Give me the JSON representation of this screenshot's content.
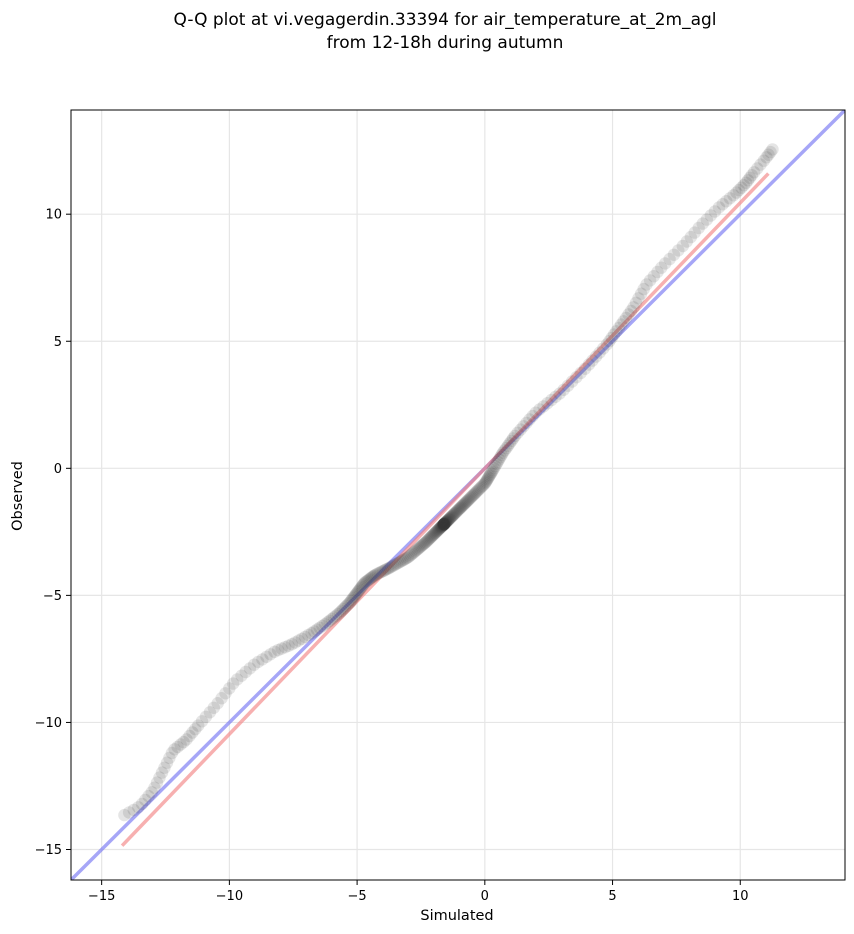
{
  "chart_data": {
    "type": "scatter",
    "title_lines": [
      "Q-Q plot at vi.vegagerdin.33394 for air_temperature_at_2m_agl",
      "from 12-18h during autumn"
    ],
    "xlabel": "Simulated",
    "ylabel": "Observed",
    "xlim": [
      -16.2,
      14.1
    ],
    "ylim": [
      -16.2,
      14.1
    ],
    "xticks": [
      -15,
      -10,
      -5,
      0,
      5,
      10
    ],
    "yticks": [
      -15,
      -10,
      -5,
      0,
      5,
      10
    ],
    "xtick_labels": [
      "−15",
      "−10",
      "−5",
      "0",
      "5",
      "10"
    ],
    "ytick_labels": [
      "−15",
      "−10",
      "−5",
      "0",
      "5",
      "10"
    ],
    "grid": true,
    "colors": {
      "points": "#333333",
      "identity_line": "#6f6ff2",
      "fit_line": "#f28080",
      "grid": "#e6e6e6"
    },
    "lines": [
      {
        "kind": "identity",
        "x": [
          -16.2,
          14.1
        ],
        "y": [
          -16.2,
          14.1
        ]
      },
      {
        "kind": "fit",
        "x": [
          -14.2,
          11.1
        ],
        "y": [
          -14.85,
          11.6
        ]
      }
    ],
    "quantile_curve": {
      "x": [
        -14.2,
        -13.5,
        -13.0,
        -12.6,
        -12.2,
        -11.7,
        -11.2,
        -10.5,
        -9.8,
        -9.0,
        -8.2,
        -7.5,
        -6.8,
        -6.2,
        -5.7,
        -5.3,
        -5.0,
        -4.7,
        -4.3,
        -3.7,
        -3.0,
        -2.3,
        -1.6,
        -1.0,
        -0.5,
        0.0,
        0.3,
        0.7,
        1.2,
        2.0,
        3.0,
        4.0,
        4.8,
        5.3,
        5.8,
        6.3,
        7.0,
        7.8,
        8.5,
        9.2,
        9.8,
        10.2,
        10.5,
        11.0,
        11.3
      ],
      "y": [
        -13.7,
        -13.3,
        -12.7,
        -11.9,
        -11.1,
        -10.7,
        -10.1,
        -9.3,
        -8.4,
        -7.7,
        -7.2,
        -6.9,
        -6.5,
        -6.1,
        -5.7,
        -5.3,
        -4.9,
        -4.5,
        -4.2,
        -3.9,
        -3.5,
        -2.9,
        -2.2,
        -1.6,
        -1.1,
        -0.6,
        -0.1,
        0.6,
        1.3,
        2.2,
        3.0,
        4.0,
        4.9,
        5.6,
        6.3,
        7.2,
        8.0,
        8.8,
        9.6,
        10.3,
        10.8,
        11.2,
        11.6,
        12.2,
        12.6
      ]
    },
    "quantile_count": 320
  }
}
